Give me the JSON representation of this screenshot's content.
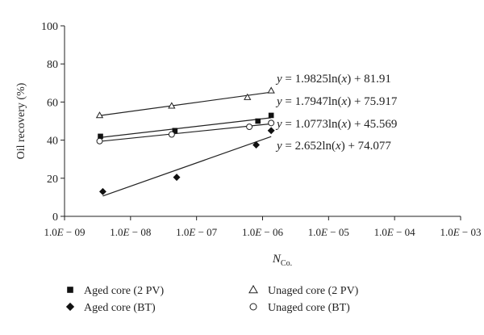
{
  "chart_data": {
    "type": "scatter",
    "xlabel_main": "N",
    "xlabel_sub": "Co.",
    "ylabel": "Oil recovery (%)",
    "x_scale": "log",
    "xlim": [
      1e-09,
      0.001
    ],
    "ylim": [
      0,
      100
    ],
    "y_ticks": [
      0,
      20,
      40,
      60,
      80,
      100
    ],
    "x_ticks": [
      1e-09,
      1e-08,
      1e-07,
      1e-06,
      1e-05,
      0.0001,
      0.001
    ],
    "x_tick_labels": [
      [
        "1.0",
        "E",
        " − 09"
      ],
      [
        "1.0",
        "E",
        " − 08"
      ],
      [
        "1.0",
        "E",
        " − 07"
      ],
      [
        "1.0",
        "E",
        " − 06"
      ],
      [
        "1.0",
        "E",
        " − 05"
      ],
      [
        "1.0",
        "E",
        " − 04"
      ],
      [
        "1.0",
        "E",
        " − 03"
      ]
    ],
    "grid": false,
    "legend_position": "bottom",
    "series": [
      {
        "name": "Aged core (2 PV)",
        "marker": "square",
        "x": [
          3.5e-09,
          4.7e-08,
          8.5e-07,
          1.35e-06
        ],
        "y": [
          42,
          45,
          50,
          53
        ],
        "trend": [
          76.2,
          0.51,
          1.3
        ]
      },
      {
        "name": "Unaged core (2 PV)",
        "marker": "triangle",
        "x": [
          3.4e-09,
          4.2e-08,
          5.9e-07,
          1.35e-06
        ],
        "y": [
          53,
          58,
          62.5,
          66
        ],
        "trend": [
          86.6,
          0.51,
          1.3
        ]
      },
      {
        "name": "Aged core (BT)",
        "marker": "diamond",
        "x": [
          3.8e-09,
          5e-08,
          8e-07,
          1.35e-06
        ],
        "y": [
          13,
          20.5,
          37.5,
          45
        ],
        "trend": [
          105.8,
          0.51,
          1.3
        ]
      },
      {
        "name": "Unaged core (BT)",
        "marker": "circle",
        "x": [
          3.4e-09,
          4.2e-08,
          6.3e-07,
          1.35e-06
        ],
        "y": [
          39.5,
          43,
          47,
          49
        ],
        "trend": [
          67.4,
          0.51,
          1.3
        ]
      }
    ],
    "equations": [
      {
        "y": "y",
        "eq": " = 1.9825ln(",
        "x": "x",
        "tail": ") + 81.91"
      },
      {
        "y": "y",
        "eq": " = 1.7947ln(",
        "x": "x",
        "tail": ") + 75.917"
      },
      {
        "y": "y",
        "eq": " = 1.0773ln(",
        "x": "x",
        "tail": ") + 45.569"
      },
      {
        "y": "y",
        "eq": " = 2.652ln(",
        "x": "x",
        "tail": ") + 74.077"
      }
    ]
  }
}
